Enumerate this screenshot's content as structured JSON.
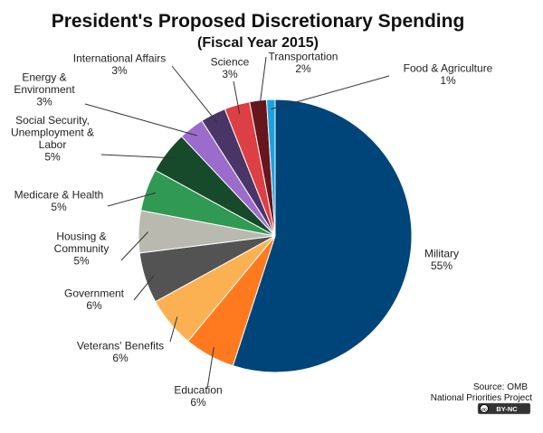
{
  "chart_data": {
    "type": "pie",
    "title": "President's Proposed Discretionary Spending",
    "subtitle": "(Fiscal Year 2015)",
    "slices": [
      {
        "label_lines": [
          "Military",
          "55%"
        ],
        "value": 55,
        "color": "#00457a"
      },
      {
        "label_lines": [
          "Education",
          "6%"
        ],
        "value": 6,
        "color": "#ff7a1f"
      },
      {
        "label_lines": [
          "Veterans' Benefits",
          "6%"
        ],
        "value": 6,
        "color": "#fbb151"
      },
      {
        "label_lines": [
          "Government",
          "6%"
        ],
        "value": 6,
        "color": "#535353"
      },
      {
        "label_lines": [
          "Housing &",
          "Community",
          "5%"
        ],
        "value": 5,
        "color": "#b9b9b0"
      },
      {
        "label_lines": [
          "Medicare & Health",
          "5%"
        ],
        "value": 5,
        "color": "#309953"
      },
      {
        "label_lines": [
          "Social Security,",
          "Unemployment &",
          "Labor",
          "5%"
        ],
        "value": 5,
        "color": "#174a2a"
      },
      {
        "label_lines": [
          "Energy &",
          "Environment",
          "3%"
        ],
        "value": 3,
        "color": "#9b6ccb"
      },
      {
        "label_lines": [
          "International Affairs",
          "3%"
        ],
        "value": 3,
        "color": "#4a3567"
      },
      {
        "label_lines": [
          "Science",
          "3%"
        ],
        "value": 3,
        "color": "#dc3f44"
      },
      {
        "label_lines": [
          "Transportation",
          "2%"
        ],
        "value": 2,
        "color": "#66161c"
      },
      {
        "label_lines": [
          "Food & Agriculture",
          "1%"
        ],
        "value": 1,
        "color": "#1aa3e0"
      }
    ]
  },
  "source": {
    "line1": "Source: OMB",
    "line2": "National Priorities Project",
    "license": "BY-NC"
  }
}
